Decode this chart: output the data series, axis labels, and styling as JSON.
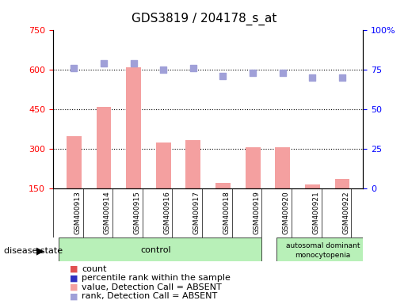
{
  "title": "GDS3819 / 204178_s_at",
  "samples": [
    "GSM400913",
    "GSM400914",
    "GSM400915",
    "GSM400916",
    "GSM400917",
    "GSM400918",
    "GSM400919",
    "GSM400920",
    "GSM400921",
    "GSM400922"
  ],
  "bar_values": [
    350,
    460,
    610,
    325,
    335,
    170,
    305,
    305,
    165,
    185
  ],
  "rank_values": [
    76,
    79,
    79,
    75,
    76,
    71,
    73,
    73,
    70,
    70
  ],
  "ylim_left": [
    150,
    750
  ],
  "ylim_right": [
    0,
    100
  ],
  "yticks_left": [
    150,
    300,
    450,
    600,
    750
  ],
  "yticks_right": [
    0,
    25,
    50,
    75,
    100
  ],
  "ytick_labels_right": [
    "0",
    "25",
    "50",
    "75",
    "100%"
  ],
  "bar_color": "#f4a0a0",
  "rank_color": "#a0a0d8",
  "bar_color_present": "#e05050",
  "rank_color_present": "#3030c0",
  "grid_lines": [
    300,
    450,
    600
  ],
  "control_samples": 7,
  "disease_label1": "autosomal dominant",
  "disease_label2": "monocytopenia",
  "control_label": "control",
  "legend_items": [
    {
      "color": "#e05050",
      "label": "count"
    },
    {
      "color": "#3030c0",
      "label": "percentile rank within the sample"
    },
    {
      "color": "#f4a0a0",
      "label": "value, Detection Call = ABSENT"
    },
    {
      "color": "#a0a0d8",
      "label": "rank, Detection Call = ABSENT"
    }
  ],
  "bg_color": "#ffffff",
  "tick_area_bg": "#d8d8d8",
  "control_bg": "#b8f0b8",
  "disease_bg": "#b8f0b8"
}
